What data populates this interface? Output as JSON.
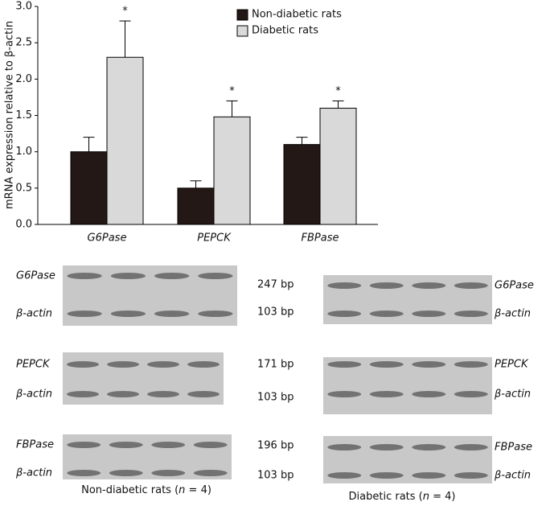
{
  "chart_data": {
    "type": "bar",
    "y_label": "mRNA expression relative to β-actin",
    "categories": [
      "G6Pase",
      "PEPCK",
      "FBPase"
    ],
    "series": [
      {
        "name": "Non-diabetic rats",
        "color": "#231815",
        "values": [
          1.0,
          0.5,
          1.1
        ],
        "errors": [
          0.2,
          0.1,
          0.1
        ]
      },
      {
        "name": "Diabetic rats",
        "color": "#d9d9d9",
        "values": [
          2.3,
          1.48,
          1.6
        ],
        "errors": [
          0.5,
          0.22,
          0.1
        ],
        "annotations": [
          "*",
          "*",
          "*"
        ]
      }
    ],
    "ylim": [
      0,
      3
    ],
    "yticks": [
      {
        "value": 0,
        "label": "0.0"
      },
      {
        "value": 0.5,
        "label": "0.5"
      },
      {
        "value": 1,
        "label": "1.0"
      },
      {
        "value": 1.5,
        "label": "1.5"
      },
      {
        "value": 2,
        "label": "2.0"
      },
      {
        "value": 2.5,
        "label": "2.5"
      },
      {
        "value": 3,
        "label": "3.0"
      }
    ],
    "legend": "top-right"
  },
  "gels": {
    "left": {
      "caption": [
        "Non-diabetic rats (",
        "n",
        " = 4)"
      ],
      "panels": [
        {
          "gene": "G6Pase",
          "control": "β-actin"
        },
        {
          "gene": "PEPCK",
          "control": "β-actin"
        },
        {
          "gene": "FBPase",
          "control": "β-actin"
        }
      ]
    },
    "sizes": [
      [
        "247 bp",
        "103 bp"
      ],
      [
        "171 bp",
        "103 bp"
      ],
      [
        "196 bp",
        "103 bp"
      ]
    ],
    "right": {
      "caption": [
        "Diabetic rats (",
        "n",
        " = 4)"
      ],
      "panels": [
        {
          "gene": "G6Pase",
          "control": "β-actin"
        },
        {
          "gene": "PEPCK",
          "control": "β-actin"
        },
        {
          "gene": "FBPase",
          "control": "β-actin"
        }
      ]
    }
  }
}
